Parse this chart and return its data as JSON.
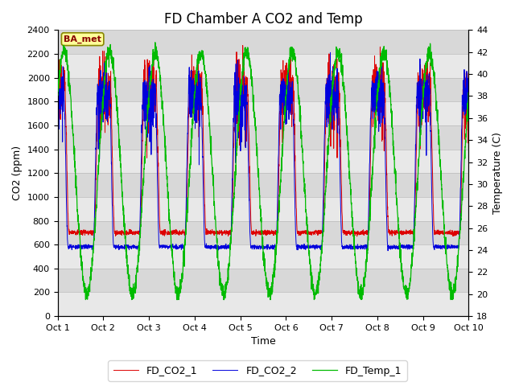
{
  "title": "FD Chamber A CO2 and Temp",
  "xlabel": "Time",
  "ylabel_left": "CO2 (ppm)",
  "ylabel_right": "Temperature (C)",
  "ylim_left": [
    0,
    2400
  ],
  "ylim_right": [
    18,
    44
  ],
  "xlim": [
    0,
    9
  ],
  "xtick_labels": [
    "Oct 1",
    "Oct 2",
    "Oct 3",
    "Oct 4",
    "Oct 5",
    "Oct 6",
    "Oct 7",
    "Oct 8",
    "Oct 9",
    "Oct 10"
  ],
  "color_co2_1": "#dd0000",
  "color_co2_2": "#0000dd",
  "color_temp": "#00bb00",
  "label_co2_1": "FD_CO2_1",
  "label_co2_2": "FD_CO2_2",
  "label_temp": "FD_Temp_1",
  "annotation_text": "BA_met",
  "background_color": "#ffffff",
  "plot_bg_color": "#d8d8d8",
  "band_color_light": "#e8e8e8",
  "title_fontsize": 12,
  "axis_fontsize": 9,
  "legend_fontsize": 9,
  "yticks_left": [
    0,
    200,
    400,
    600,
    800,
    1000,
    1200,
    1400,
    1600,
    1800,
    2000,
    2200,
    2400
  ],
  "yticks_right": [
    18,
    20,
    22,
    24,
    26,
    28,
    30,
    32,
    34,
    36,
    38,
    40,
    42,
    44
  ]
}
